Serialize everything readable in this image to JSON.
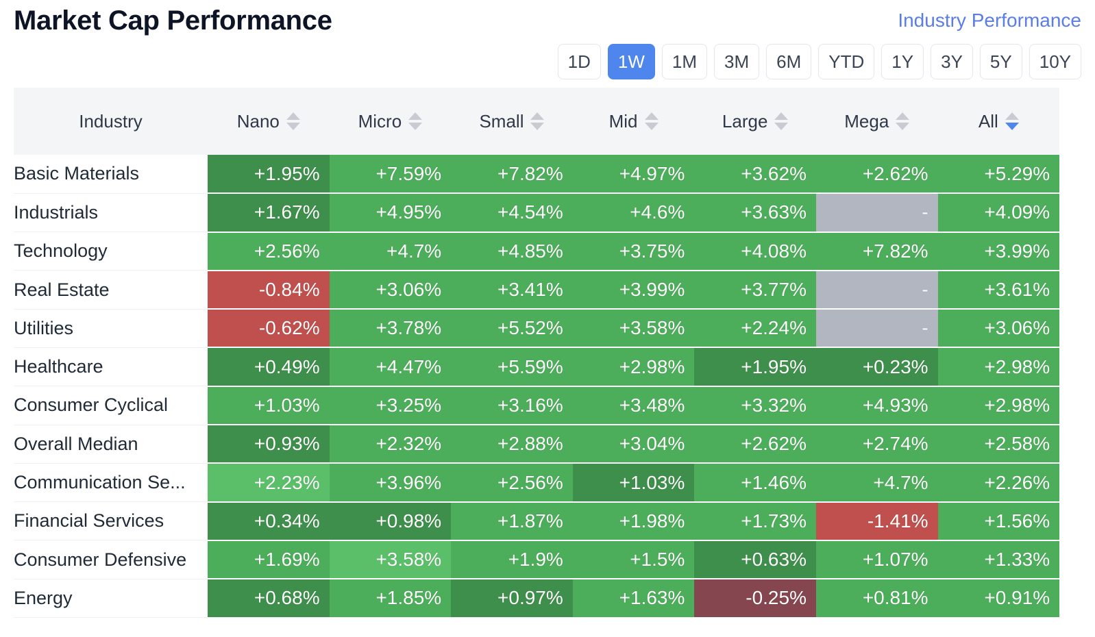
{
  "header": {
    "title": "Market Cap Performance",
    "industry_link": "Industry Performance"
  },
  "periods": [
    {
      "label": "1D",
      "active": false
    },
    {
      "label": "1W",
      "active": true
    },
    {
      "label": "1M",
      "active": false
    },
    {
      "label": "3M",
      "active": false
    },
    {
      "label": "6M",
      "active": false
    },
    {
      "label": "YTD",
      "active": false
    },
    {
      "label": "1Y",
      "active": false
    },
    {
      "label": "3Y",
      "active": false
    },
    {
      "label": "5Y",
      "active": false
    },
    {
      "label": "10Y",
      "active": false
    }
  ],
  "table": {
    "columns": [
      "Industry",
      "Nano",
      "Micro",
      "Small",
      "Mid",
      "Large",
      "Mega",
      "All"
    ],
    "sorted_column": "All",
    "sort_direction": "desc",
    "colors": {
      "green_light": "#5bbf6a",
      "green_mid": "#4cad5a",
      "green_dark": "#3e8f4b",
      "red": "#c0504e",
      "red_dark": "#854650",
      "empty": "#b2b6c0"
    },
    "rows": [
      {
        "industry": "Basic Materials",
        "values": [
          "+1.95%",
          "+7.59%",
          "+7.82%",
          "+4.97%",
          "+3.62%",
          "+2.62%",
          "+5.29%"
        ],
        "tones": [
          "green_dark",
          "green_mid",
          "green_mid",
          "green_mid",
          "green_mid",
          "green_mid",
          "green_mid"
        ]
      },
      {
        "industry": "Industrials",
        "values": [
          "+1.67%",
          "+4.95%",
          "+4.54%",
          "+4.6%",
          "+3.63%",
          "-",
          "+4.09%"
        ],
        "tones": [
          "green_dark",
          "green_mid",
          "green_mid",
          "green_mid",
          "green_mid",
          "empty",
          "green_mid"
        ]
      },
      {
        "industry": "Technology",
        "values": [
          "+2.56%",
          "+4.7%",
          "+4.85%",
          "+3.75%",
          "+4.08%",
          "+7.82%",
          "+3.99%"
        ],
        "tones": [
          "green_mid",
          "green_mid",
          "green_mid",
          "green_mid",
          "green_mid",
          "green_mid",
          "green_mid"
        ]
      },
      {
        "industry": "Real Estate",
        "values": [
          "-0.84%",
          "+3.06%",
          "+3.41%",
          "+3.99%",
          "+3.77%",
          "-",
          "+3.61%"
        ],
        "tones": [
          "red",
          "green_mid",
          "green_mid",
          "green_mid",
          "green_mid",
          "empty",
          "green_mid"
        ]
      },
      {
        "industry": "Utilities",
        "values": [
          "-0.62%",
          "+3.78%",
          "+5.52%",
          "+3.58%",
          "+2.24%",
          "-",
          "+3.06%"
        ],
        "tones": [
          "red",
          "green_mid",
          "green_mid",
          "green_mid",
          "green_mid",
          "empty",
          "green_mid"
        ]
      },
      {
        "industry": "Healthcare",
        "values": [
          "+0.49%",
          "+4.47%",
          "+5.59%",
          "+2.98%",
          "+1.95%",
          "+0.23%",
          "+2.98%"
        ],
        "tones": [
          "green_dark",
          "green_mid",
          "green_mid",
          "green_mid",
          "green_dark",
          "green_dark",
          "green_mid"
        ]
      },
      {
        "industry": "Consumer Cyclical",
        "values": [
          "+1.03%",
          "+3.25%",
          "+3.16%",
          "+3.48%",
          "+3.32%",
          "+4.93%",
          "+2.98%"
        ],
        "tones": [
          "green_mid",
          "green_mid",
          "green_mid",
          "green_mid",
          "green_mid",
          "green_mid",
          "green_mid"
        ]
      },
      {
        "industry": "Overall Median",
        "values": [
          "+0.93%",
          "+2.32%",
          "+2.88%",
          "+3.04%",
          "+2.62%",
          "+2.74%",
          "+2.58%"
        ],
        "tones": [
          "green_dark",
          "green_mid",
          "green_mid",
          "green_mid",
          "green_mid",
          "green_mid",
          "green_mid"
        ]
      },
      {
        "industry": "Communication Se...",
        "values": [
          "+2.23%",
          "+3.96%",
          "+2.56%",
          "+1.03%",
          "+1.46%",
          "+4.7%",
          "+2.26%"
        ],
        "tones": [
          "green_light",
          "green_mid",
          "green_mid",
          "green_dark",
          "green_mid",
          "green_mid",
          "green_mid"
        ]
      },
      {
        "industry": "Financial Services",
        "values": [
          "+0.34%",
          "+0.98%",
          "+1.87%",
          "+1.98%",
          "+1.73%",
          "-1.41%",
          "+1.56%"
        ],
        "tones": [
          "green_dark",
          "green_dark",
          "green_mid",
          "green_mid",
          "green_mid",
          "red",
          "green_mid"
        ]
      },
      {
        "industry": "Consumer Defensive",
        "values": [
          "+1.69%",
          "+3.58%",
          "+1.9%",
          "+1.5%",
          "+0.63%",
          "+1.07%",
          "+1.33%"
        ],
        "tones": [
          "green_mid",
          "green_light",
          "green_mid",
          "green_mid",
          "green_dark",
          "green_mid",
          "green_mid"
        ]
      },
      {
        "industry": "Energy",
        "values": [
          "+0.68%",
          "+1.85%",
          "+0.97%",
          "+1.63%",
          "-0.25%",
          "+0.81%",
          "+0.91%"
        ],
        "tones": [
          "green_dark",
          "green_mid",
          "green_dark",
          "green_mid",
          "red_dark",
          "green_mid",
          "green_mid"
        ]
      }
    ]
  }
}
